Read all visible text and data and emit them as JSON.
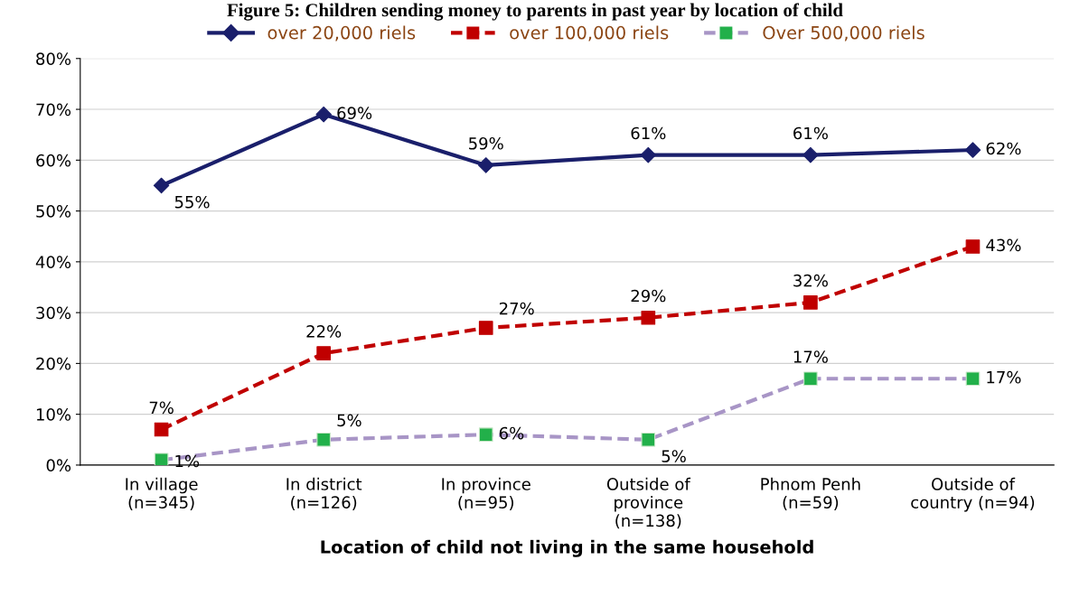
{
  "chart_data": {
    "type": "line",
    "title": "Figure 5: Children sending money to parents in past year by location of child",
    "xlabel": "Location of child not living in the same household",
    "categories": [
      "In village\n(n=345)",
      "In district\n(n=126)",
      "In province\n(n=95)",
      "Outside of\nprovince\n(n=138)",
      "Phnom Penh\n(n=59)",
      "Outside of\ncountry (n=94)"
    ],
    "series": [
      {
        "name": "over 20,000 riels",
        "color": "#1a1f6b",
        "marker": "diamond",
        "line_style": "solid",
        "values": [
          55,
          69,
          59,
          61,
          61,
          62
        ],
        "value_labels": [
          "55%",
          "69%",
          "59%",
          "61%",
          "61%",
          "62%"
        ]
      },
      {
        "name": "over 100,000 riels",
        "color": "#c00000",
        "marker": "square",
        "line_style": "dashed",
        "values": [
          7,
          22,
          27,
          29,
          32,
          43
        ],
        "value_labels": [
          "7%",
          "22%",
          "27%",
          "29%",
          "32%",
          "43%"
        ]
      },
      {
        "name": "Over 500,000 riels",
        "color": "#a895c6",
        "colors": [
          "#22b04a",
          "#22b04a",
          "#22b04a",
          "#22b04a",
          "#22b04a",
          "#22b04a"
        ],
        "marker": "square",
        "line_style": "dashed",
        "values": [
          1,
          5,
          6,
          5,
          17,
          17
        ],
        "value_labels": [
          "1%",
          "5%",
          "6%",
          "5%",
          "17%",
          "17%"
        ]
      }
    ],
    "ylim": [
      0,
      80
    ],
    "yticks": [
      {
        "value": 0,
        "label": "0%"
      },
      {
        "value": 10,
        "label": "10%"
      },
      {
        "value": 20,
        "label": "20%"
      },
      {
        "value": 30,
        "label": "30%"
      },
      {
        "value": 40,
        "label": "40%"
      },
      {
        "value": 50,
        "label": "50%"
      },
      {
        "value": 60,
        "label": "60%"
      },
      {
        "value": 70,
        "label": "70%"
      },
      {
        "value": 80,
        "label": "80%"
      }
    ],
    "grid": "y",
    "legend": "top"
  }
}
